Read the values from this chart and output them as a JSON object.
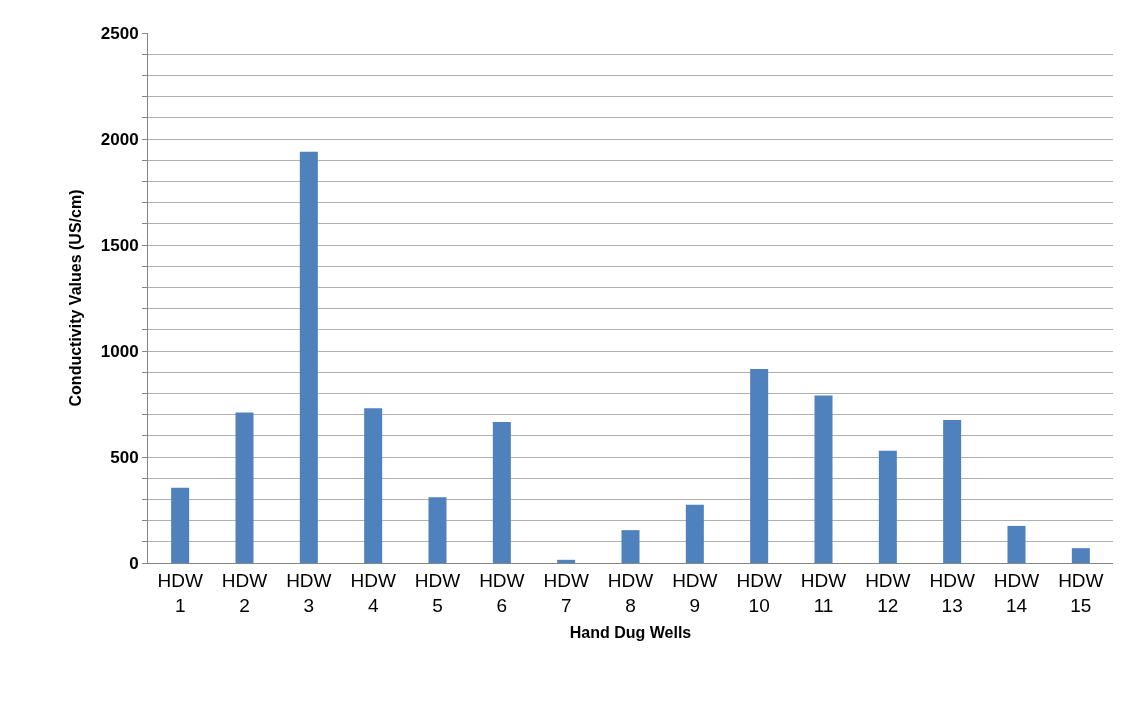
{
  "chart_data": {
    "type": "bar",
    "xlabel": "Hand Dug Wells",
    "ylabel": "Conductivity Values (US/cm)",
    "categories": [
      "HDW\n1",
      "HDW\n2",
      "HDW\n3",
      "HDW\n4",
      "HDW\n5",
      "HDW\n6",
      "HDW\n7",
      "HDW\n8",
      "HDW\n9",
      "HDW\n10",
      "HDW\n11",
      "HDW\n12",
      "HDW\n13",
      "HDW\n14",
      "HDW\n15"
    ],
    "values": [
      355,
      710,
      1940,
      730,
      310,
      665,
      15,
      155,
      275,
      915,
      790,
      530,
      675,
      175,
      70
    ],
    "color": "#4f81bd",
    "ylim": [
      0,
      2500
    ],
    "yticks": [
      0,
      {
        "value": 100,
        "label": null
      },
      {
        "value": 200,
        "label": null
      },
      {
        "value": 300,
        "label": null
      },
      {
        "value": 400,
        "label": null
      },
      500,
      {
        "value": 600,
        "label": null
      },
      {
        "value": 700,
        "label": null
      },
      {
        "value": 800,
        "label": null
      },
      {
        "value": 900,
        "label": null
      },
      1000,
      {
        "value": 1100,
        "label": null
      },
      {
        "value": 1200,
        "label": null
      },
      {
        "value": 1300,
        "label": null
      },
      {
        "value": 1400,
        "label": null
      },
      1500,
      {
        "value": 1600,
        "label": null
      },
      {
        "value": 1700,
        "label": null
      },
      {
        "value": 1800,
        "label": null
      },
      {
        "value": 1900,
        "label": null
      },
      2000,
      {
        "value": 2100,
        "label": null
      },
      {
        "value": 2200,
        "label": null
      },
      {
        "value": 2300,
        "label": null
      },
      {
        "value": 2400,
        "label": null
      },
      2500
    ],
    "grid": "y"
  }
}
